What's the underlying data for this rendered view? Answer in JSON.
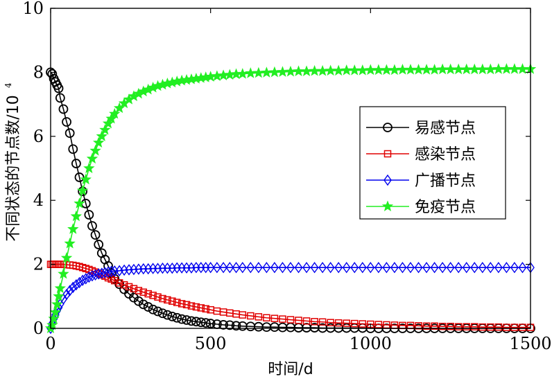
{
  "chart_data": {
    "type": "line",
    "xlabel": "时间/d",
    "ylabel": "不同状态的节点数/10",
    "ylabel_exponent": "4",
    "xlim": [
      0,
      1500
    ],
    "ylim": [
      0,
      10
    ],
    "xticks": [
      0,
      500,
      1000,
      1500
    ],
    "yticks": [
      0,
      2,
      4,
      6,
      8,
      10
    ],
    "grid": false,
    "legend_position": "center-right",
    "x": [
      0,
      5,
      10,
      15,
      20,
      25,
      30,
      40,
      50,
      60,
      70,
      80,
      90,
      100,
      110,
      120,
      130,
      140,
      150,
      160,
      170,
      180,
      190,
      200,
      215,
      230,
      245,
      260,
      275,
      290,
      305,
      320,
      335,
      350,
      365,
      380,
      395,
      410,
      425,
      440,
      455,
      470,
      485,
      500,
      520,
      540,
      560,
      580,
      600,
      625,
      650,
      675,
      700,
      725,
      750,
      775,
      800,
      825,
      850,
      875,
      900,
      925,
      950,
      975,
      1000,
      1025,
      1050,
      1075,
      1100,
      1125,
      1150,
      1175,
      1200,
      1225,
      1250,
      1275,
      1300,
      1325,
      1350,
      1375,
      1400,
      1425,
      1450,
      1475,
      1500
    ],
    "series": [
      {
        "name": "易感节点",
        "color": "#000000",
        "marker": "circle",
        "values": [
          8.0,
          7.95,
          7.8,
          7.7,
          7.6,
          7.5,
          7.2,
          6.85,
          6.45,
          6.1,
          5.6,
          5.15,
          4.72,
          4.28,
          3.9,
          3.55,
          3.2,
          2.92,
          2.62,
          2.35,
          2.15,
          1.95,
          1.72,
          1.55,
          1.38,
          1.22,
          1.08,
          0.96,
          0.85,
          0.75,
          0.67,
          0.59,
          0.53,
          0.47,
          0.42,
          0.37,
          0.33,
          0.29,
          0.26,
          0.23,
          0.21,
          0.19,
          0.17,
          0.15,
          0.13,
          0.11,
          0.1,
          0.08,
          0.07,
          0.06,
          0.05,
          0.04,
          0.04,
          0.03,
          0.03,
          0.02,
          0.02,
          0.02,
          0.01,
          0.01,
          0.01,
          0.01,
          0.01,
          0.01,
          0.0,
          0.0,
          0.0,
          0.0,
          0.0,
          0.0,
          0.0,
          0.0,
          0.0,
          0.0,
          0.0,
          0.0,
          0.0,
          0.0,
          0.0,
          0.0,
          0.0,
          0.0,
          0.0,
          0.0,
          0.0
        ]
      },
      {
        "name": "感染节点",
        "color": "#e00000",
        "marker": "square",
        "values": [
          2.0,
          2.0,
          2.0,
          2.0,
          2.0,
          2.0,
          2.0,
          2.0,
          1.99,
          1.98,
          1.97,
          1.95,
          1.93,
          1.9,
          1.87,
          1.84,
          1.8,
          1.76,
          1.72,
          1.67,
          1.63,
          1.58,
          1.54,
          1.49,
          1.42,
          1.36,
          1.3,
          1.24,
          1.18,
          1.13,
          1.08,
          1.03,
          0.98,
          0.93,
          0.89,
          0.85,
          0.81,
          0.77,
          0.74,
          0.7,
          0.67,
          0.64,
          0.61,
          0.58,
          0.54,
          0.51,
          0.48,
          0.45,
          0.42,
          0.39,
          0.36,
          0.33,
          0.31,
          0.29,
          0.27,
          0.25,
          0.23,
          0.21,
          0.2,
          0.18,
          0.17,
          0.16,
          0.15,
          0.14,
          0.13,
          0.12,
          0.11,
          0.1,
          0.09,
          0.09,
          0.08,
          0.07,
          0.07,
          0.06,
          0.06,
          0.05,
          0.05,
          0.05,
          0.04,
          0.04,
          0.04,
          0.03,
          0.03,
          0.03,
          0.03
        ]
      },
      {
        "name": "广播节点",
        "color": "#0000ee",
        "marker": "diamond",
        "values": [
          0.0,
          0.15,
          0.3,
          0.42,
          0.55,
          0.65,
          0.76,
          0.92,
          1.06,
          1.18,
          1.28,
          1.36,
          1.43,
          1.5,
          1.55,
          1.6,
          1.64,
          1.67,
          1.7,
          1.72,
          1.74,
          1.76,
          1.78,
          1.79,
          1.8,
          1.82,
          1.83,
          1.84,
          1.85,
          1.86,
          1.86,
          1.87,
          1.87,
          1.88,
          1.88,
          1.88,
          1.89,
          1.89,
          1.89,
          1.89,
          1.9,
          1.9,
          1.9,
          1.9,
          1.9,
          1.9,
          1.9,
          1.9,
          1.9,
          1.9,
          1.9,
          1.9,
          1.9,
          1.9,
          1.9,
          1.9,
          1.9,
          1.9,
          1.9,
          1.9,
          1.9,
          1.9,
          1.9,
          1.9,
          1.9,
          1.9,
          1.9,
          1.9,
          1.9,
          1.9,
          1.9,
          1.9,
          1.9,
          1.9,
          1.9,
          1.9,
          1.9,
          1.9,
          1.9,
          1.9,
          1.9,
          1.9,
          1.9,
          1.9,
          1.9
        ]
      },
      {
        "name": "免疫节点",
        "color": "#22ee22",
        "marker": "star",
        "values": [
          0.0,
          0.1,
          0.3,
          0.5,
          0.75,
          1.0,
          1.25,
          1.7,
          2.2,
          2.65,
          3.1,
          3.5,
          3.9,
          4.3,
          4.65,
          5.0,
          5.3,
          5.55,
          5.8,
          6.0,
          6.2,
          6.4,
          6.55,
          6.7,
          6.88,
          7.03,
          7.15,
          7.25,
          7.33,
          7.4,
          7.46,
          7.52,
          7.57,
          7.61,
          7.65,
          7.68,
          7.71,
          7.74,
          7.76,
          7.78,
          7.8,
          7.82,
          7.84,
          7.86,
          7.88,
          7.9,
          7.92,
          7.94,
          7.95,
          7.97,
          7.98,
          7.99,
          8.0,
          8.01,
          8.02,
          8.03,
          8.03,
          8.04,
          8.04,
          8.05,
          8.05,
          8.06,
          8.06,
          8.06,
          8.07,
          8.07,
          8.07,
          8.07,
          8.08,
          8.08,
          8.08,
          8.08,
          8.08,
          8.09,
          8.09,
          8.09,
          8.09,
          8.09,
          8.09,
          8.09,
          8.1,
          8.1,
          8.1,
          8.1,
          8.1
        ]
      }
    ]
  }
}
